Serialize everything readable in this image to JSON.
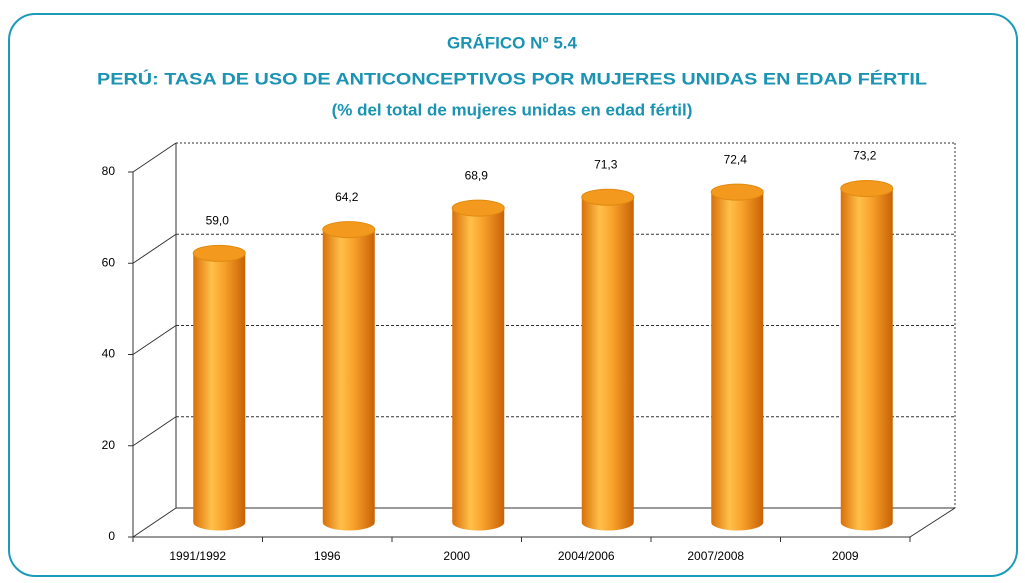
{
  "chart_data": {
    "type": "bar",
    "caption": "GRÁFICO Nº 5.4",
    "title": "PERÚ: TASA DE USO DE ANTICONCEPTIVOS POR MUJERES UNIDAS EN EDAD FÉRTIL",
    "subtitle": "(% del total de mujeres unidas en edad fértil)",
    "categories": [
      "1991/1992",
      "1996",
      "2000",
      "2004/2006",
      "2007/2008",
      "2009"
    ],
    "values": [
      59.0,
      64.2,
      68.9,
      71.3,
      72.4,
      73.2
    ],
    "value_labels": [
      "59,0",
      "64,2",
      "68,9",
      "71,3",
      "72,4",
      "73,2"
    ],
    "color": "#f39a1e",
    "ylim": [
      0,
      80
    ],
    "yticks": [
      0,
      20,
      40,
      60,
      80
    ],
    "grid": true
  }
}
